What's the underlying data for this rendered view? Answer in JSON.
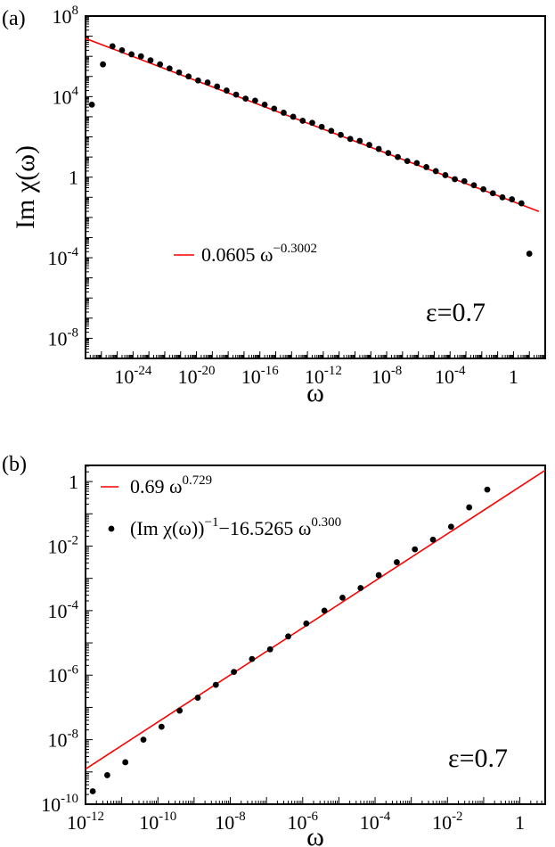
{
  "colors": {
    "fit_line": "#ff0000",
    "points": "#000000",
    "axes": "#000000"
  },
  "chart_data": [
    {
      "panel_label": "(a)",
      "type": "scatter",
      "xscale": "log",
      "yscale": "log",
      "xlabel": "ω",
      "ylabel": "Im χ(ω)",
      "xlim_exp": [
        -27,
        2
      ],
      "ylim_exp": [
        -9,
        8
      ],
      "x_ticks": [
        {
          "exp": -24,
          "text": "10",
          "sup": "-24"
        },
        {
          "exp": -20,
          "text": "10",
          "sup": "-20"
        },
        {
          "exp": -16,
          "text": "10",
          "sup": "-16"
        },
        {
          "exp": -12,
          "text": "10",
          "sup": "-12"
        },
        {
          "exp": -8,
          "text": "10",
          "sup": "-8"
        },
        {
          "exp": -4,
          "text": "10",
          "sup": "-4"
        },
        {
          "exp": 0,
          "text": "1",
          "sup": ""
        }
      ],
      "y_ticks": [
        {
          "exp": 8,
          "text": "10",
          "sup": "8"
        },
        {
          "exp": 4,
          "text": "10",
          "sup": "4"
        },
        {
          "exp": 0,
          "text": "1",
          "sup": ""
        },
        {
          "exp": -4,
          "text": "10",
          "sup": "-4"
        },
        {
          "exp": -8,
          "text": "10",
          "sup": "-8"
        }
      ],
      "annotation": "ε=0.7",
      "grid": false,
      "legend_position": "middle-left",
      "series": [
        {
          "name": "0.0605 ω^-0.3002",
          "legend_main": "0.0605 ω",
          "legend_sup": "−0.3002",
          "kind": "line",
          "coef": 0.0605,
          "power": -0.3002,
          "x_exp_range": [
            -27,
            1.6
          ]
        },
        {
          "kind": "points",
          "x_exp": [
            -26.6,
            -25.9,
            -25.3,
            -24.7,
            -24.1,
            -23.5,
            -22.9,
            -22.3,
            -21.7,
            -21.1,
            -20.5,
            -19.9,
            -19.3,
            -18.7,
            -18.1,
            -17.5,
            -16.9,
            -16.3,
            -15.7,
            -15.1,
            -14.5,
            -13.9,
            -13.3,
            -12.7,
            -12.1,
            -11.5,
            -10.9,
            -10.3,
            -9.7,
            -9.1,
            -8.5,
            -7.9,
            -7.3,
            -6.7,
            -6.1,
            -5.5,
            -4.9,
            -4.3,
            -3.7,
            -3.1,
            -2.5,
            -1.9,
            -1.3,
            -0.7,
            -0.1,
            0.5,
            1.0
          ],
          "y_exp": [
            3.6,
            5.6,
            6.5,
            6.3,
            6.1,
            6.0,
            5.8,
            5.6,
            5.4,
            5.2,
            5.0,
            4.8,
            4.7,
            4.5,
            4.3,
            4.1,
            3.9,
            3.8,
            3.6,
            3.4,
            3.2,
            3.0,
            2.8,
            2.7,
            2.5,
            2.3,
            2.1,
            1.9,
            1.8,
            1.6,
            1.4,
            1.2,
            1.0,
            0.8,
            0.7,
            0.5,
            0.3,
            0.1,
            -0.1,
            -0.2,
            -0.4,
            -0.6,
            -0.8,
            -1.0,
            -1.1,
            -1.3,
            -3.8
          ]
        }
      ]
    },
    {
      "panel_label": "(b)",
      "type": "scatter",
      "xscale": "log",
      "yscale": "log",
      "xlabel": "ω",
      "ylabel": "",
      "xlim_exp": [
        -12,
        0.7
      ],
      "ylim_exp": [
        -10,
        0.5
      ],
      "x_ticks": [
        {
          "exp": -12,
          "text": "10",
          "sup": "-12"
        },
        {
          "exp": -10,
          "text": "10",
          "sup": "-10"
        },
        {
          "exp": -8,
          "text": "10",
          "sup": "-8"
        },
        {
          "exp": -6,
          "text": "10",
          "sup": "-6"
        },
        {
          "exp": -4,
          "text": "10",
          "sup": "-4"
        },
        {
          "exp": -2,
          "text": "10",
          "sup": "-2"
        },
        {
          "exp": 0,
          "text": "1",
          "sup": ""
        }
      ],
      "y_ticks": [
        {
          "exp": 0,
          "text": "1",
          "sup": ""
        },
        {
          "exp": -2,
          "text": "10",
          "sup": "-2"
        },
        {
          "exp": -4,
          "text": "10",
          "sup": "-4"
        },
        {
          "exp": -6,
          "text": "10",
          "sup": "-6"
        },
        {
          "exp": -8,
          "text": "10",
          "sup": "-8"
        },
        {
          "exp": -10,
          "text": "10",
          "sup": "-10"
        }
      ],
      "annotation": "ε=0.7",
      "grid": false,
      "legend_position": "top-left",
      "series": [
        {
          "name": "0.69 ω^0.729",
          "legend_main": "0.69 ω",
          "legend_sup": "0.729",
          "kind": "line",
          "coef": 0.69,
          "power": 0.729,
          "x_exp_range": [
            -12,
            0.7
          ]
        },
        {
          "name": "(Im χ(ω))^-1 −16.5265 ω^0.300",
          "legend_main": "(Im χ(ω))",
          "legend_sup": "−1",
          "legend_main2": "−16.5265 ω",
          "legend_sup2": "0.300",
          "kind": "points",
          "x_exp": [
            -11.8,
            -11.4,
            -10.9,
            -10.4,
            -9.9,
            -9.4,
            -8.9,
            -8.4,
            -7.9,
            -7.4,
            -6.9,
            -6.4,
            -5.9,
            -5.4,
            -4.9,
            -4.4,
            -3.9,
            -3.4,
            -2.9,
            -2.4,
            -1.9,
            -1.4,
            -0.9
          ],
          "y_exp": [
            -9.6,
            -9.1,
            -8.7,
            -8.0,
            -7.6,
            -7.1,
            -6.7,
            -6.3,
            -5.9,
            -5.5,
            -5.2,
            -4.8,
            -4.4,
            -4.0,
            -3.6,
            -3.3,
            -2.9,
            -2.5,
            -2.1,
            -1.8,
            -1.4,
            -0.8,
            -0.25
          ]
        }
      ]
    }
  ]
}
